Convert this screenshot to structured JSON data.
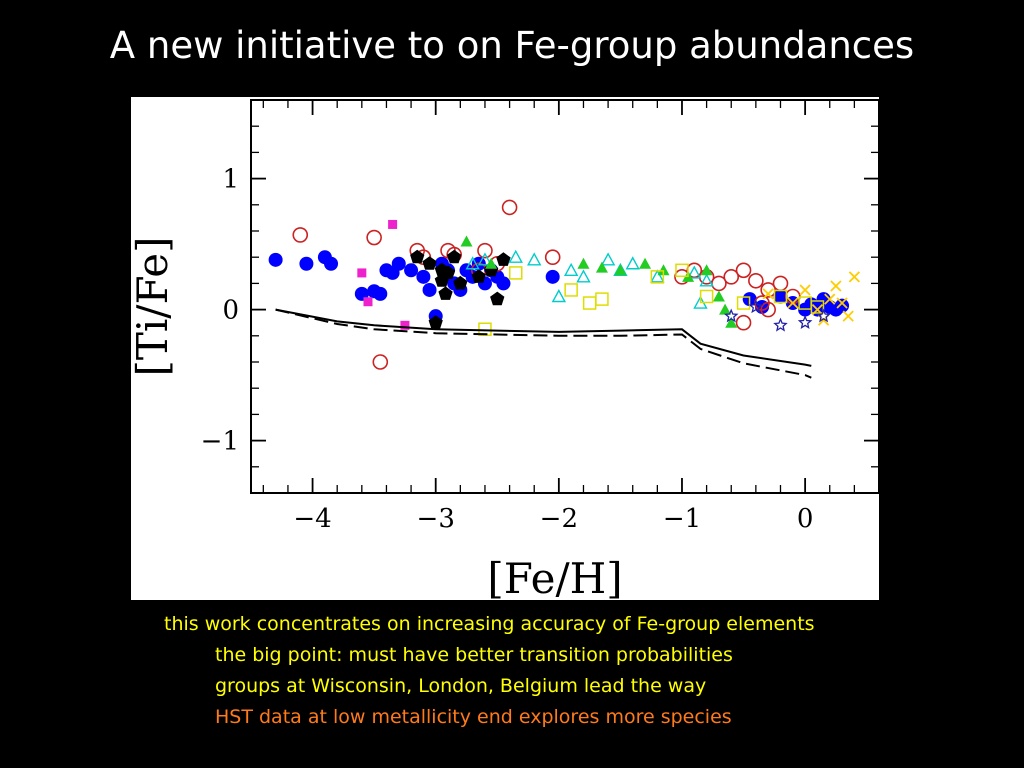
{
  "slide": {
    "title": "A new initiative to on Fe-group abundances",
    "bullets": [
      {
        "text": "this work concentrates on increasing accuracy of Fe-group elements",
        "color": "#ffff00"
      },
      {
        "text": "the big point:  must have better transition probabilities",
        "color": "#ffff00"
      },
      {
        "text": "groups at Wisconsin, London, Belgium lead the way",
        "color": "#ffff00"
      },
      {
        "text": "HST data at low metallicity end explores more species",
        "color": "#ff7a1a"
      }
    ]
  },
  "chart_data": {
    "type": "scatter",
    "title": "",
    "xlabel": "[Fe/H]",
    "ylabel": "[Ti/Fe]",
    "xlim": [
      -4.5,
      0.6
    ],
    "ylim": [
      -1.4,
      1.6
    ],
    "xticks": [
      -4,
      -3,
      -2,
      -1,
      0
    ],
    "yticks": [
      -1,
      0,
      1
    ],
    "xtick_labels": [
      "−4",
      "−3",
      "−2",
      "−1",
      "0"
    ],
    "ytick_labels": [
      "−1",
      "0",
      "1"
    ],
    "grid": false,
    "legend": "none",
    "series": [
      {
        "marker": "filled-circle",
        "color": "#0000ff",
        "x": [
          -4.3,
          -4.05,
          -3.9,
          -3.85,
          -3.6,
          -3.5,
          -3.45,
          -3.4,
          -3.35,
          -3.3,
          -3.2,
          -3.1,
          -3.05,
          -3.0,
          -2.95,
          -2.9,
          -2.85,
          -2.8,
          -2.75,
          -2.7,
          -2.65,
          -2.6,
          -2.55,
          -2.5,
          -2.45,
          -2.05,
          -0.45,
          -0.35,
          -0.2,
          -0.1,
          0.0,
          0.05,
          0.1,
          0.15,
          0.2,
          0.25,
          0.3
        ],
        "y": [
          0.38,
          0.35,
          0.4,
          0.35,
          0.12,
          0.14,
          0.12,
          0.3,
          0.28,
          0.35,
          0.3,
          0.25,
          0.15,
          -0.05,
          0.35,
          0.3,
          0.2,
          0.15,
          0.3,
          0.25,
          0.35,
          0.2,
          0.3,
          0.25,
          0.2,
          0.25,
          0.08,
          0.02,
          0.1,
          0.05,
          0.0,
          0.04,
          0.0,
          0.08,
          0.02,
          0.0,
          0.03
        ]
      },
      {
        "marker": "open-circle",
        "color": "#cc2222",
        "x": [
          -4.1,
          -3.5,
          -3.45,
          -3.15,
          -3.1,
          -2.9,
          -2.85,
          -2.65,
          -2.6,
          -2.5,
          -2.4,
          -2.05,
          -1.0,
          -0.9,
          -0.8,
          -0.7,
          -0.6,
          -0.5,
          -0.4,
          -0.35,
          -0.3,
          -0.2,
          -0.1,
          -0.3,
          -0.5
        ],
        "y": [
          0.57,
          0.55,
          -0.4,
          0.45,
          0.4,
          0.45,
          0.42,
          0.3,
          0.45,
          0.35,
          0.78,
          0.4,
          0.25,
          0.3,
          0.25,
          0.2,
          0.25,
          0.3,
          0.22,
          0.05,
          0.15,
          0.2,
          0.1,
          0.0,
          -0.1
        ]
      },
      {
        "marker": "filled-pentagon",
        "color": "#000000",
        "x": [
          -3.15,
          -3.05,
          -2.95,
          -2.92,
          -2.9,
          -2.85,
          -2.8,
          -2.65,
          -2.55,
          -2.5,
          -2.45,
          -3.0,
          -2.95
        ],
        "y": [
          0.4,
          0.35,
          0.3,
          0.12,
          0.28,
          0.4,
          0.2,
          0.25,
          0.3,
          0.08,
          0.38,
          -0.1,
          0.22
        ]
      },
      {
        "marker": "filled-square",
        "color": "#ee22cc",
        "x": [
          -3.6,
          -3.55,
          -3.35,
          -3.25
        ],
        "y": [
          0.28,
          0.06,
          0.65,
          -0.12
        ]
      },
      {
        "marker": "open-triangle",
        "color": "#00cccc",
        "x": [
          -2.7,
          -2.6,
          -2.35,
          -2.2,
          -2.0,
          -1.9,
          -1.8,
          -1.6,
          -1.5,
          -1.4,
          -1.2,
          -0.9,
          -0.8,
          -0.85
        ],
        "y": [
          0.35,
          0.38,
          0.4,
          0.38,
          0.1,
          0.3,
          0.25,
          0.38,
          0.3,
          0.35,
          0.25,
          0.28,
          0.22,
          0.05
        ]
      },
      {
        "marker": "filled-triangle",
        "color": "#22cc22",
        "x": [
          -2.75,
          -2.55,
          -1.8,
          -1.65,
          -1.5,
          -1.3,
          -1.15,
          -0.95,
          -0.8,
          -0.7,
          -0.65,
          -0.6
        ],
        "y": [
          0.52,
          0.35,
          0.35,
          0.32,
          0.3,
          0.35,
          0.3,
          0.25,
          0.3,
          0.1,
          0.0,
          -0.1
        ]
      },
      {
        "marker": "open-square",
        "color": "#dddd00",
        "x": [
          -2.6,
          -2.35,
          -1.9,
          -1.75,
          -1.65,
          -1.2,
          -1.0,
          -0.8,
          -0.5,
          -0.2,
          0.0,
          0.1
        ],
        "y": [
          -0.15,
          0.28,
          0.15,
          0.05,
          0.08,
          0.25,
          0.3,
          0.1,
          0.05,
          0.1,
          0.05,
          0.02
        ]
      },
      {
        "marker": "x-cross",
        "color": "#ffcc00",
        "x": [
          -0.3,
          -0.1,
          0.0,
          0.1,
          0.15,
          0.2,
          0.25,
          0.3,
          0.35,
          0.4
        ],
        "y": [
          0.12,
          0.05,
          0.15,
          0.0,
          -0.08,
          0.08,
          0.18,
          0.05,
          -0.05,
          0.25
        ]
      },
      {
        "marker": "open-star",
        "color": "#2222aa",
        "x": [
          -0.6,
          -0.4,
          -0.2,
          0.0,
          0.15
        ],
        "y": [
          -0.05,
          0.02,
          -0.12,
          -0.1,
          -0.05
        ]
      },
      {
        "marker": "line-solid",
        "color": "#000000",
        "x": [
          -4.3,
          -3.8,
          -3.5,
          -3.0,
          -2.5,
          -2.0,
          -1.5,
          -1.0,
          -0.85,
          -0.5,
          0.0,
          0.05
        ],
        "y": [
          0.0,
          -0.09,
          -0.12,
          -0.15,
          -0.16,
          -0.17,
          -0.16,
          -0.15,
          -0.26,
          -0.35,
          -0.42,
          -0.43
        ]
      },
      {
        "marker": "line-dashed",
        "color": "#000000",
        "x": [
          -4.3,
          -3.8,
          -3.5,
          -3.0,
          -2.5,
          -2.0,
          -1.5,
          -1.0,
          -0.85,
          -0.5,
          0.0,
          0.05
        ],
        "y": [
          0.0,
          -0.11,
          -0.15,
          -0.18,
          -0.19,
          -0.2,
          -0.2,
          -0.19,
          -0.3,
          -0.41,
          -0.5,
          -0.52
        ]
      }
    ]
  }
}
